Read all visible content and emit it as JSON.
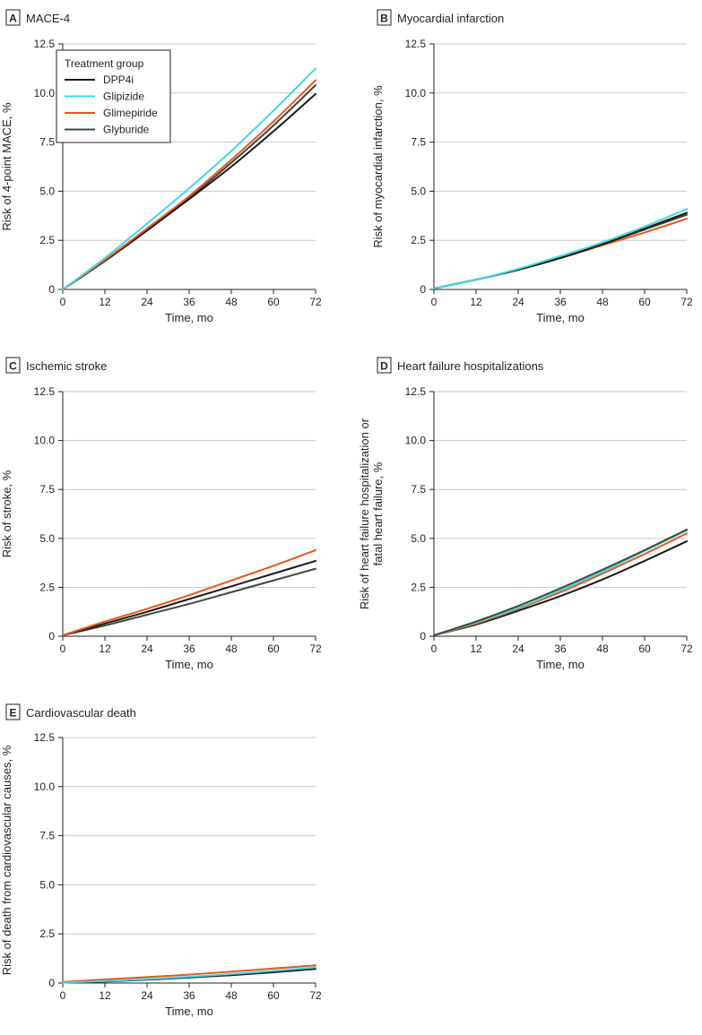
{
  "colors": {
    "DPP4i": "#1a1a1a",
    "Glipizide": "#3fd9e6",
    "Glimepiride": "#e8561e",
    "Glyburide": "#3b4a3c",
    "axis": "#231f20",
    "grid": "#c8c8c8"
  },
  "chart_data": [
    {
      "type": "line",
      "panel": "A",
      "title": "MACE-4",
      "xlabel": "Time, mo",
      "ylabel": [
        "Risk of 4-point MACE, %"
      ],
      "xticks": [
        "0",
        "12",
        "24",
        "36",
        "48",
        "60",
        "72"
      ],
      "yticks": [
        "0",
        "2.5",
        "5.0",
        "7.5",
        "10.0",
        "12.5"
      ],
      "xlim": [
        0,
        72
      ],
      "ylim": [
        0,
        12.5
      ],
      "grid": "horizontal",
      "legend": {
        "title": "Treatment group",
        "placement": "top-left",
        "entries": [
          "DPP4i",
          "Glipizide",
          "Glimepiride",
          "Glyburide"
        ]
      },
      "x": [
        0,
        12,
        24,
        36,
        48,
        60,
        72
      ],
      "series": [
        {
          "name": "Glyburide",
          "values": [
            0,
            1.45,
            3.0,
            4.65,
            6.45,
            8.35,
            10.4
          ]
        },
        {
          "name": "DPP4i",
          "values": [
            0,
            1.45,
            3.0,
            4.6,
            6.25,
            8.05,
            9.95
          ]
        },
        {
          "name": "Glimepiride",
          "values": [
            0,
            1.5,
            3.1,
            4.75,
            6.6,
            8.55,
            10.65
          ]
        },
        {
          "name": "Glipizide",
          "values": [
            0,
            1.6,
            3.35,
            5.15,
            7.05,
            9.1,
            11.25
          ]
        }
      ]
    },
    {
      "type": "line",
      "panel": "B",
      "title": "Myocardial infarction",
      "xlabel": "Time, mo",
      "ylabel": [
        "Risk of myocardial infarction, %"
      ],
      "xticks": [
        "0",
        "12",
        "24",
        "36",
        "48",
        "60",
        "72"
      ],
      "yticks": [
        "0",
        "2.5",
        "5.0",
        "7.5",
        "10.0",
        "12.5"
      ],
      "xlim": [
        0,
        72
      ],
      "ylim": [
        0,
        12.5
      ],
      "grid": "horizontal",
      "x": [
        0,
        12,
        24,
        36,
        48,
        60,
        72
      ],
      "series": [
        {
          "name": "Glimepiride",
          "values": [
            0.05,
            0.5,
            1.0,
            1.6,
            2.25,
            2.9,
            3.6
          ]
        },
        {
          "name": "Glyburide",
          "values": [
            0.05,
            0.5,
            1.0,
            1.6,
            2.3,
            3.05,
            3.8
          ]
        },
        {
          "name": "DPP4i",
          "values": [
            0.05,
            0.5,
            1.0,
            1.6,
            2.3,
            3.1,
            3.9
          ]
        },
        {
          "name": "Glipizide",
          "values": [
            0.05,
            0.5,
            1.05,
            1.7,
            2.4,
            3.2,
            4.1
          ]
        }
      ]
    },
    {
      "type": "line",
      "panel": "C",
      "title": "Ischemic stroke",
      "xlabel": "Time, mo",
      "ylabel": [
        "Risk of stroke, %"
      ],
      "xticks": [
        "0",
        "12",
        "24",
        "36",
        "48",
        "60",
        "72"
      ],
      "yticks": [
        "0",
        "2.5",
        "5.0",
        "7.5",
        "10.0",
        "12.5"
      ],
      "xlim": [
        0,
        72
      ],
      "ylim": [
        0,
        12.5
      ],
      "grid": "horizontal",
      "x": [
        0,
        12,
        24,
        36,
        48,
        60,
        72
      ],
      "series": [
        {
          "name": "Glyburide",
          "values": [
            0.05,
            0.55,
            1.1,
            1.65,
            2.25,
            2.85,
            3.45
          ]
        },
        {
          "name": "DPP4i",
          "values": [
            0.05,
            0.65,
            1.25,
            1.9,
            2.55,
            3.2,
            3.85
          ]
        },
        {
          "name": "Glimepiride",
          "values": [
            0.05,
            0.75,
            1.4,
            2.1,
            2.85,
            3.6,
            4.4
          ]
        }
      ]
    },
    {
      "type": "line",
      "panel": "D",
      "title": "Heart failure hospitalizations",
      "xlabel": "Time, mo",
      "ylabel": [
        "Risk of heart failure hospitalization or",
        "fatal heart failure, %"
      ],
      "xticks": [
        "0",
        "12",
        "24",
        "36",
        "48",
        "60",
        "72"
      ],
      "yticks": [
        "0",
        "2.5",
        "5.0",
        "7.5",
        "10.0",
        "12.5"
      ],
      "xlim": [
        0,
        72
      ],
      "ylim": [
        0,
        12.5
      ],
      "grid": "horizontal",
      "x": [
        0,
        12,
        24,
        36,
        48,
        60,
        72
      ],
      "series": [
        {
          "name": "DPP4i",
          "values": [
            0.05,
            0.6,
            1.3,
            2.05,
            2.9,
            3.85,
            4.85
          ]
        },
        {
          "name": "Glimepiride",
          "values": [
            0.05,
            0.65,
            1.4,
            2.25,
            3.2,
            4.2,
            5.25
          ]
        },
        {
          "name": "Glipizide",
          "values": [
            0.05,
            0.7,
            1.45,
            2.35,
            3.3,
            4.35,
            5.4
          ]
        },
        {
          "name": "Glyburide",
          "values": [
            0.05,
            0.75,
            1.55,
            2.45,
            3.4,
            4.4,
            5.45
          ]
        }
      ]
    },
    {
      "type": "line",
      "panel": "E",
      "title": "Cardiovascular death",
      "xlabel": "Time, mo",
      "ylabel": [
        "Risk of death from cardiovascular causes, %"
      ],
      "xticks": [
        "0",
        "12",
        "24",
        "36",
        "48",
        "60",
        "72"
      ],
      "yticks": [
        "0",
        "2.5",
        "5.0",
        "7.5",
        "10.0",
        "12.5"
      ],
      "xlim": [
        0,
        72
      ],
      "ylim": [
        0,
        12.5
      ],
      "grid": "horizontal",
      "x": [
        0,
        12,
        24,
        36,
        48,
        60,
        72
      ],
      "series": [
        {
          "name": "Glimepiride",
          "values": [
            0.05,
            0.18,
            0.3,
            0.43,
            0.58,
            0.74,
            0.9
          ]
        },
        {
          "name": "DPP4i",
          "values": [
            0.02,
            0.08,
            0.17,
            0.28,
            0.4,
            0.55,
            0.72
          ]
        },
        {
          "name": "Glipizide",
          "values": [
            0.02,
            0.1,
            0.2,
            0.32,
            0.46,
            0.62,
            0.8
          ]
        }
      ]
    }
  ]
}
